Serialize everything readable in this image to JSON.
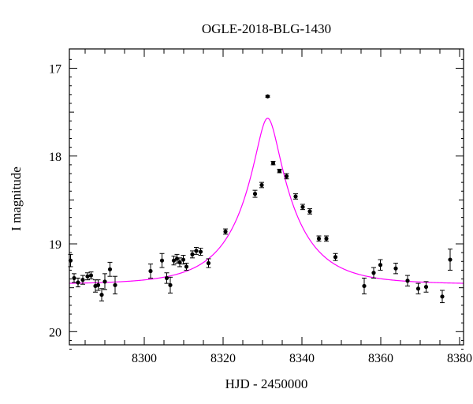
{
  "chart_data": {
    "type": "scatter",
    "title": "OGLE-2018-BLG-1430",
    "xlabel": "HJD - 2450000",
    "ylabel": "I magnitude",
    "xlim": [
      8281,
      8381
    ],
    "ylim": [
      20.15,
      16.78
    ],
    "y_inverted": true,
    "xticks": [
      8300,
      8320,
      8340,
      8360,
      8380
    ],
    "xtick_labels": [
      "8300",
      "8320",
      "8340",
      "8360",
      "8380"
    ],
    "yticks": [
      17,
      18,
      19,
      20
    ],
    "ytick_labels": [
      "17",
      "18",
      "19",
      "20"
    ],
    "grid": false,
    "colors": {
      "points": "#000000",
      "model": "#ff00ff",
      "axes": "#000000"
    },
    "series": [
      {
        "kind": "points_with_errorbars",
        "x": [
          8281.3,
          8282.2,
          8283.2,
          8284.4,
          8285.6,
          8286.5,
          8287.6,
          8288.3,
          8289.2,
          8290.0,
          8291.3,
          8292.6,
          8301.6,
          8304.5,
          8305.7,
          8306.6,
          8307.5,
          8308.3,
          8309.0,
          8309.9,
          8310.7,
          8312.2,
          8313.2,
          8314.3,
          8316.3,
          8320.6,
          8328.1,
          8329.8,
          8331.3,
          8332.7,
          8334.3,
          8336.1,
          8338.4,
          8340.2,
          8342.0,
          8344.3,
          8346.2,
          8348.5,
          8355.8,
          8358.2,
          8359.9,
          8363.8,
          8366.8,
          8369.5,
          8371.5,
          8375.6,
          8377.6
        ],
        "y": [
          19.19,
          19.39,
          19.44,
          19.41,
          19.37,
          19.36,
          19.48,
          19.47,
          19.58,
          19.43,
          19.29,
          19.47,
          19.31,
          19.19,
          19.39,
          19.47,
          19.19,
          19.17,
          19.21,
          19.18,
          19.26,
          19.12,
          19.08,
          19.09,
          19.22,
          18.86,
          18.43,
          18.33,
          17.32,
          18.08,
          18.17,
          18.23,
          18.46,
          18.58,
          18.63,
          18.94,
          18.94,
          19.15,
          19.48,
          19.33,
          19.24,
          19.28,
          19.42,
          19.51,
          19.49,
          19.6,
          19.18
        ],
        "err": [
          0.07,
          0.05,
          0.05,
          0.05,
          0.04,
          0.04,
          0.07,
          0.06,
          0.07,
          0.09,
          0.08,
          0.1,
          0.08,
          0.08,
          0.06,
          0.09,
          0.05,
          0.05,
          0.05,
          0.05,
          0.04,
          0.04,
          0.04,
          0.04,
          0.05,
          0.03,
          0.04,
          0.03,
          0.01,
          0.02,
          0.02,
          0.03,
          0.03,
          0.03,
          0.03,
          0.03,
          0.03,
          0.04,
          0.09,
          0.06,
          0.06,
          0.06,
          0.06,
          0.06,
          0.06,
          0.07,
          0.12
        ]
      },
      {
        "kind": "model_curve",
        "model": "point-lens",
        "t0": 8331.3,
        "u0": 0.2,
        "tE": 14.0,
        "baseline_mag": 19.46,
        "peak_mag": 17.57
      }
    ]
  }
}
